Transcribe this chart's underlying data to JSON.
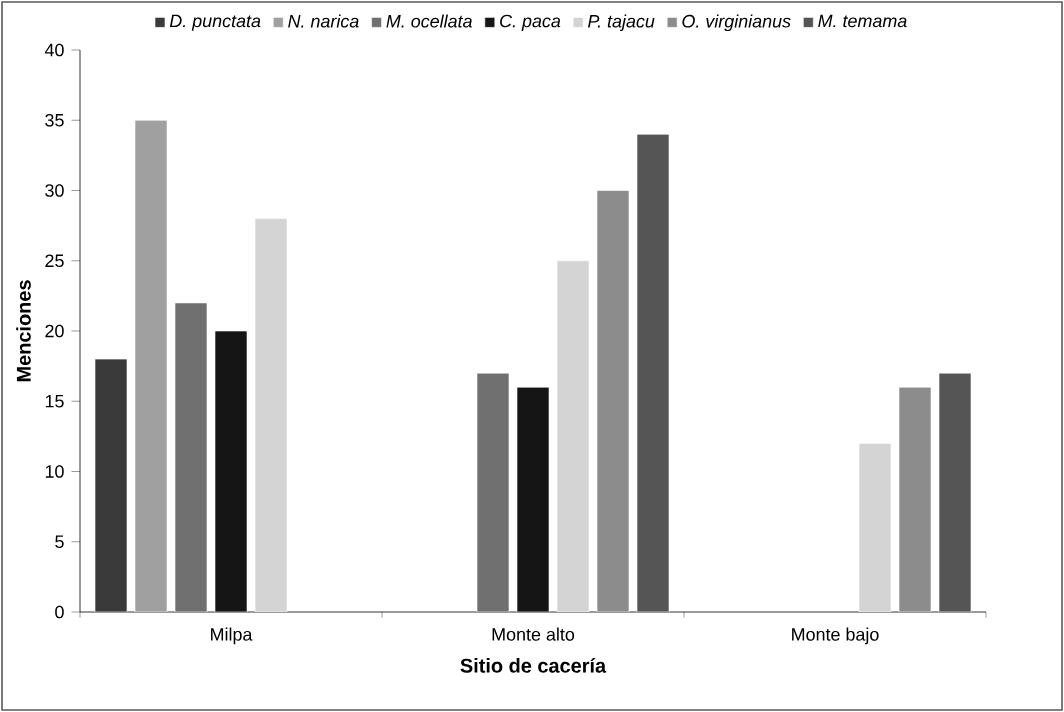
{
  "chart_data": {
    "type": "bar",
    "xlabel": "Sitio de cacería",
    "ylabel": "Menciones",
    "categories": [
      "Milpa",
      "Monte alto",
      "Monte bajo"
    ],
    "series": [
      {
        "name": "D. punctata",
        "color": "#3a3a3a",
        "values": [
          18,
          null,
          null
        ]
      },
      {
        "name": "N. narica",
        "color": "#a0a0a0",
        "values": [
          35,
          null,
          null
        ]
      },
      {
        "name": "M. ocellata",
        "color": "#707070",
        "values": [
          22,
          17,
          null
        ]
      },
      {
        "name": "C. paca",
        "color": "#151515",
        "values": [
          20,
          16,
          null
        ]
      },
      {
        "name": "P. tajacu",
        "color": "#d4d4d4",
        "values": [
          28,
          25,
          12
        ]
      },
      {
        "name": "O. virginianus",
        "color": "#8c8c8c",
        "values": [
          null,
          30,
          16
        ]
      },
      {
        "name": "M. temama",
        "color": "#555555",
        "values": [
          null,
          34,
          17
        ]
      }
    ],
    "ylim": [
      0,
      40
    ],
    "yticks": [
      0,
      5,
      10,
      15,
      20,
      25,
      30,
      35,
      40
    ],
    "grid": false,
    "legend": "top"
  }
}
